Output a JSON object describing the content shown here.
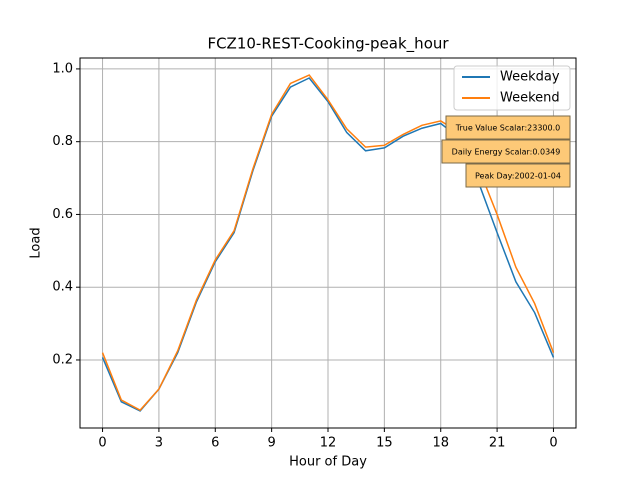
{
  "chart_data": {
    "type": "line",
    "title": "FCZ10-REST-Cooking-peak_hour",
    "x_label": "Hour of Day",
    "y_label": "Load",
    "x": [
      0,
      1,
      2,
      3,
      4,
      5,
      6,
      7,
      8,
      9,
      10,
      11,
      12,
      13,
      14,
      15,
      16,
      17,
      18,
      19,
      20,
      21,
      22,
      23,
      24
    ],
    "series": [
      {
        "name": "Weekday",
        "color": "#1f77b4",
        "values": [
          0.207,
          0.085,
          0.06,
          0.12,
          0.22,
          0.36,
          0.47,
          0.55,
          0.72,
          0.87,
          0.95,
          0.975,
          0.91,
          0.825,
          0.775,
          0.783,
          0.815,
          0.837,
          0.85,
          0.81,
          0.69,
          0.55,
          0.415,
          0.33,
          0.207
        ]
      },
      {
        "name": "Weekend",
        "color": "#ff7f0e",
        "values": [
          0.22,
          0.09,
          0.062,
          0.12,
          0.225,
          0.365,
          0.475,
          0.555,
          0.725,
          0.875,
          0.96,
          0.983,
          0.915,
          0.835,
          0.785,
          0.79,
          0.82,
          0.845,
          0.857,
          0.825,
          0.73,
          0.6,
          0.455,
          0.355,
          0.22
        ]
      }
    ],
    "xlim": [
      -1.2,
      25.2
    ],
    "ylim": [
      0.013,
      1.03
    ],
    "xticks": [
      0,
      3,
      6,
      9,
      12,
      15,
      18,
      21,
      {
        "value": 24,
        "label": "0"
      }
    ],
    "yticks": [
      0.2,
      0.4,
      0.6,
      0.8,
      {
        "value": 1,
        "label": "1.0"
      }
    ],
    "grid": true,
    "legend": "upper right",
    "annotations": [
      "True Value Scalar:23300.0",
      "Daily Energy Scalar:0.0349",
      "Peak Day:2002-01-04"
    ]
  }
}
